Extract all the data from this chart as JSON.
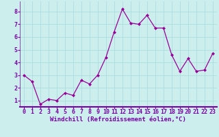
{
  "x": [
    0,
    1,
    2,
    3,
    4,
    5,
    6,
    7,
    8,
    9,
    10,
    11,
    12,
    13,
    14,
    15,
    16,
    17,
    18,
    19,
    20,
    21,
    22,
    23
  ],
  "y": [
    3.0,
    2.5,
    0.7,
    1.1,
    1.0,
    1.6,
    1.4,
    2.6,
    2.3,
    3.0,
    4.4,
    6.4,
    8.2,
    7.1,
    7.0,
    7.7,
    6.7,
    6.7,
    4.6,
    3.3,
    4.3,
    3.3,
    3.4,
    4.7
  ],
  "line_color": "#990099",
  "marker": "D",
  "marker_size": 2.0,
  "bg_color": "#cceeed",
  "grid_color": "#aadddd",
  "xlabel": "Windchill (Refroidissement éolien,°C)",
  "xlim_left": -0.5,
  "xlim_right": 23.5,
  "ylim_bottom": 0.5,
  "ylim_top": 8.8,
  "xtick_labels": [
    "0",
    "1",
    "2",
    "3",
    "4",
    "5",
    "6",
    "7",
    "8",
    "9",
    "10",
    "11",
    "12",
    "13",
    "14",
    "15",
    "16",
    "17",
    "18",
    "19",
    "20",
    "21",
    "22",
    "23"
  ],
  "ytick_labels": [
    "1",
    "2",
    "3",
    "4",
    "5",
    "6",
    "7",
    "8"
  ],
  "xlabel_fontsize": 6.5,
  "tick_fontsize": 6.0,
  "label_color": "#7700aa",
  "spine_color": "#7700aa",
  "linewidth": 0.9
}
